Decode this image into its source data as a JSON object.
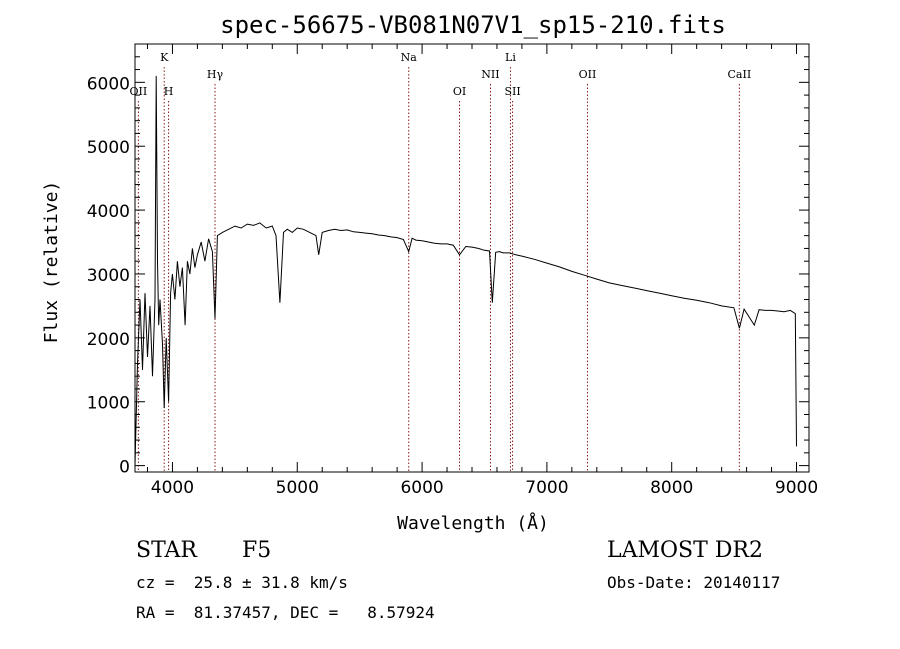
{
  "chart_data": {
    "type": "line",
    "title": "spec-56675-VB081N07V1_sp15-210.fits",
    "xlabel": "Wavelength (Å)",
    "ylabel": "Flux (relative)",
    "xlim": [
      3700,
      9100
    ],
    "ylim": [
      -100,
      6600
    ],
    "xticks": [
      {
        "value": 4000,
        "label": "4000"
      },
      {
        "value": 5000,
        "label": "5000"
      },
      {
        "value": 6000,
        "label": "6000"
      },
      {
        "value": 7000,
        "label": "7000"
      },
      {
        "value": 8000,
        "label": "8000"
      },
      {
        "value": 9000,
        "label": "9000"
      }
    ],
    "yticks": [
      {
        "value": 0,
        "label": "0"
      },
      {
        "value": 1000,
        "label": "1000"
      },
      {
        "value": 2000,
        "label": "2000"
      },
      {
        "value": 3000,
        "label": "3000"
      },
      {
        "value": 4000,
        "label": "4000"
      },
      {
        "value": 5000,
        "label": "5000"
      },
      {
        "value": 6000,
        "label": "6000"
      }
    ],
    "line_markers": [
      {
        "label": "OII",
        "wavelength": 3727,
        "level": 2
      },
      {
        "label": "K",
        "wavelength": 3934,
        "level": 0
      },
      {
        "label": "H",
        "wavelength": 3969,
        "level": 2
      },
      {
        "label": "Hγ",
        "wavelength": 4341,
        "level": 1
      },
      {
        "label": "Na",
        "wavelength": 5893,
        "level": 0
      },
      {
        "label": "OI",
        "wavelength": 6300,
        "level": 2
      },
      {
        "label": "NII",
        "wavelength": 6548,
        "level": 1
      },
      {
        "label": "Li",
        "wavelength": 6708,
        "level": 0
      },
      {
        "label": "SII",
        "wavelength": 6725,
        "level": 2
      },
      {
        "label": "OII",
        "wavelength": 7325,
        "level": 1
      },
      {
        "label": "CaII",
        "wavelength": 8542,
        "level": 1
      }
    ],
    "series": [
      {
        "name": "flux",
        "x": [
          3700,
          3720,
          3740,
          3760,
          3780,
          3800,
          3820,
          3840,
          3860,
          3870,
          3880,
          3890,
          3900,
          3920,
          3934,
          3950,
          3969,
          3985,
          4000,
          4020,
          4040,
          4060,
          4080,
          4101,
          4120,
          4140,
          4160,
          4180,
          4200,
          4230,
          4260,
          4290,
          4320,
          4341,
          4360,
          4400,
          4450,
          4500,
          4550,
          4600,
          4650,
          4700,
          4750,
          4800,
          4830,
          4861,
          4890,
          4920,
          4960,
          5000,
          5050,
          5100,
          5150,
          5172,
          5200,
          5250,
          5300,
          5350,
          5400,
          5450,
          5500,
          5550,
          5600,
          5650,
          5700,
          5750,
          5800,
          5850,
          5893,
          5920,
          5950,
          6000,
          6050,
          6100,
          6150,
          6200,
          6250,
          6300,
          6350,
          6400,
          6450,
          6500,
          6540,
          6563,
          6590,
          6620,
          6650,
          6700,
          6750,
          6800,
          6900,
          7000,
          7100,
          7200,
          7300,
          7400,
          7500,
          7600,
          7700,
          7800,
          7900,
          8000,
          8100,
          8200,
          8300,
          8400,
          8498,
          8542,
          8580,
          8662,
          8700,
          8750,
          8800,
          8850,
          8900,
          8950,
          8990,
          9000
        ],
        "y": [
          0,
          1600,
          2600,
          1500,
          2700,
          1700,
          2500,
          1400,
          2600,
          6100,
          3200,
          2200,
          2600,
          1900,
          900,
          2000,
          1000,
          2700,
          3000,
          2600,
          3200,
          2800,
          3100,
          2200,
          3200,
          3000,
          3400,
          3100,
          3300,
          3500,
          3200,
          3550,
          3350,
          2300,
          3600,
          3650,
          3700,
          3750,
          3720,
          3780,
          3760,
          3800,
          3720,
          3750,
          3600,
          2550,
          3650,
          3700,
          3650,
          3720,
          3700,
          3650,
          3600,
          3300,
          3650,
          3680,
          3700,
          3680,
          3690,
          3660,
          3650,
          3640,
          3630,
          3610,
          3600,
          3580,
          3570,
          3540,
          3350,
          3560,
          3530,
          3520,
          3500,
          3480,
          3470,
          3470,
          3450,
          3300,
          3430,
          3420,
          3400,
          3370,
          3360,
          2550,
          3340,
          3350,
          3330,
          3330,
          3300,
          3280,
          3230,
          3170,
          3110,
          3040,
          2980,
          2920,
          2860,
          2820,
          2780,
          2740,
          2700,
          2660,
          2620,
          2590,
          2550,
          2500,
          2470,
          2150,
          2450,
          2200,
          2440,
          2430,
          2430,
          2420,
          2410,
          2430,
          2380,
          300
        ]
      }
    ]
  },
  "info": {
    "object_type": "STAR",
    "subclass": "F5",
    "survey": "LAMOST DR2",
    "velocity": "cz =  25.8 ± 31.8 km/s",
    "obs_date": "Obs-Date: 20140117",
    "coordinates": "RA =  81.37457, DEC =   8.57924"
  }
}
